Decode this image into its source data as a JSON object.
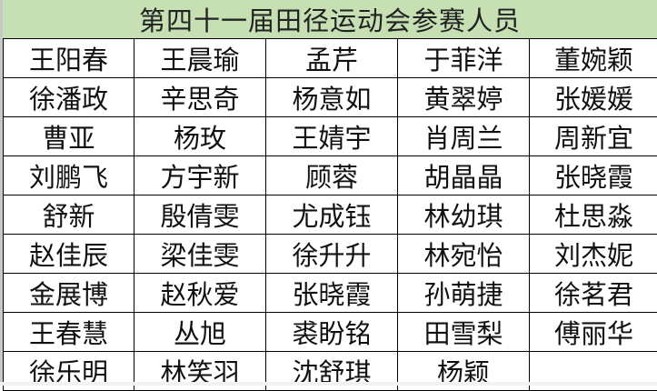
{
  "title": "第四十一届田径运动会参赛人员",
  "colors": {
    "header_bg": "#c6e0b4",
    "grid": "#000000"
  },
  "rows": [
    [
      "王阳春",
      "王晨瑜",
      "孟芹",
      "于菲洋",
      "董婉颖"
    ],
    [
      "徐潘政",
      "辛思奇",
      "杨意如",
      "黄翠婷",
      "张媛媛"
    ],
    [
      "曹亚",
      "杨玫",
      "王婧宇",
      "肖周兰",
      "周新宜"
    ],
    [
      "刘鹏飞",
      "方宇新",
      "顾蓉",
      "胡晶晶",
      "张晓霞"
    ],
    [
      "舒新",
      "殷倩雯",
      "尤成钰",
      "林幼琪",
      "杜思淼"
    ],
    [
      "赵佳辰",
      "梁佳雯",
      "徐升升",
      "林宛怡",
      "刘杰妮"
    ],
    [
      "金展博",
      "赵秋爱",
      "张晓霞",
      "孙萌捷",
      "徐茗君"
    ],
    [
      "王春慧",
      "丛旭",
      "裘盼铭",
      "田雪梨",
      "傅丽华"
    ],
    [
      "徐乐明",
      "林笑羽",
      "沈舒琪",
      "杨颖",
      ""
    ]
  ]
}
